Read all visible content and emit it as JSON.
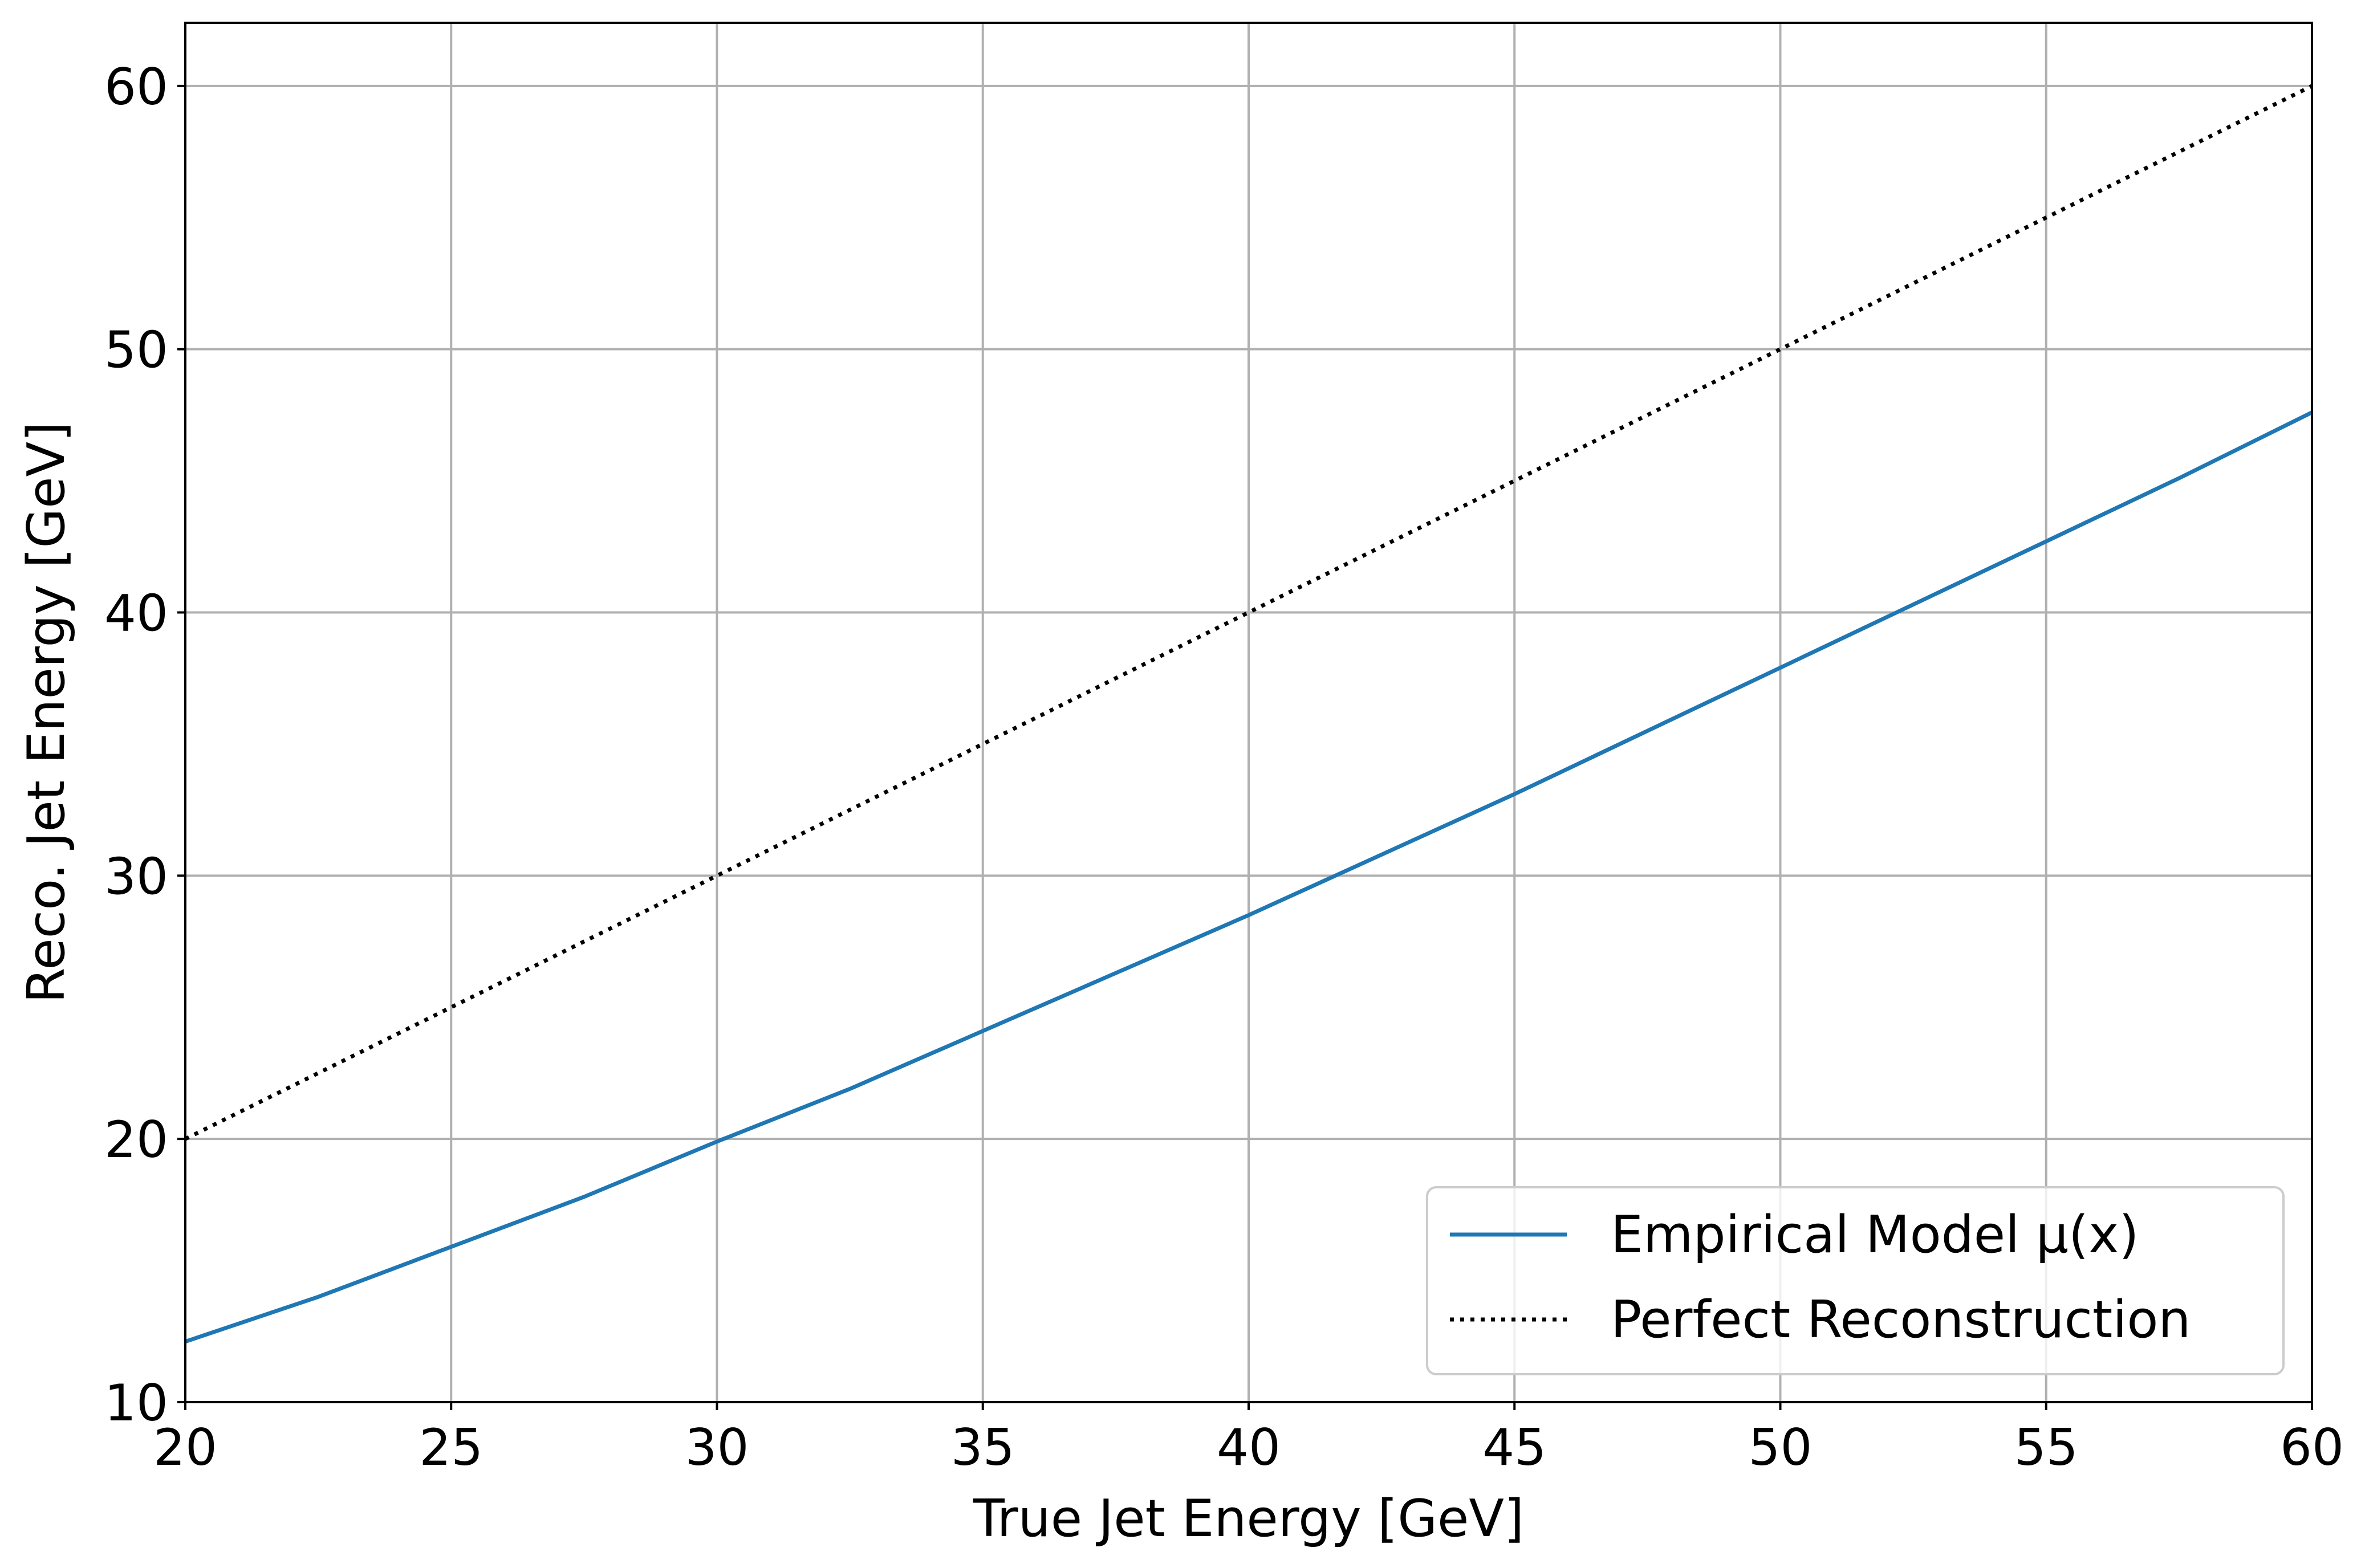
{
  "chart_data": {
    "type": "line",
    "title": "",
    "xlabel": "True Jet Energy [GeV]",
    "ylabel": "Reco. Jet Energy [GeV]",
    "xlim": [
      20,
      60
    ],
    "ylim": [
      10,
      62.4
    ],
    "xticks": [
      20,
      25,
      30,
      35,
      40,
      45,
      50,
      55,
      60
    ],
    "yticks": [
      10,
      20,
      30,
      40,
      50,
      60
    ],
    "grid": true,
    "legend_position": "lower-right",
    "series": [
      {
        "name": "Empirical Model μ(x)",
        "style": "solid",
        "color": "#1f77b4",
        "x": [
          20,
          22.5,
          25,
          27.5,
          30,
          32.5,
          35,
          37.5,
          40,
          42.5,
          45,
          47.5,
          50,
          52.5,
          55,
          57.5,
          60
        ],
        "y": [
          12.3,
          14.0,
          15.9,
          17.8,
          19.9,
          21.9,
          24.1,
          26.3,
          28.5,
          30.8,
          33.1,
          35.5,
          37.9,
          40.3,
          42.7,
          45.1,
          47.6
        ]
      },
      {
        "name": "Perfect Reconstruction",
        "style": "dotted",
        "color": "#000000",
        "x": [
          20,
          60
        ],
        "y": [
          20,
          60
        ]
      }
    ]
  }
}
